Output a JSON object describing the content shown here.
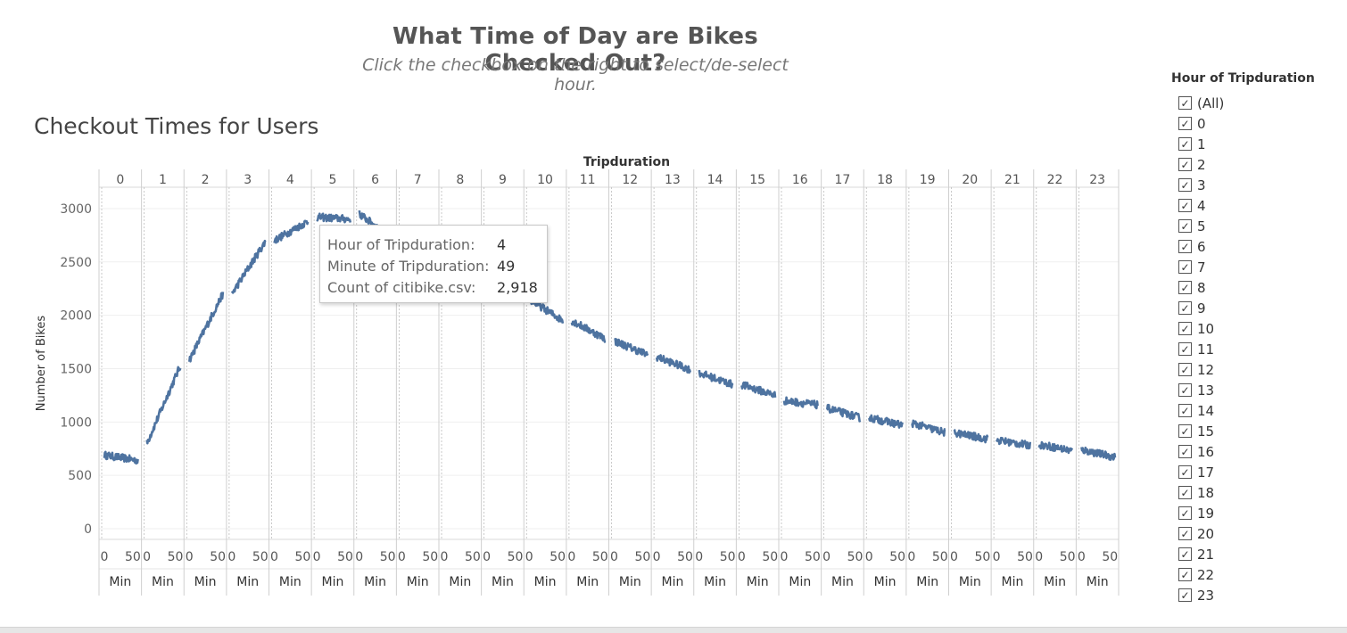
{
  "dashboard": {
    "title": "What Time of Day are Bikes Checked Out?",
    "subtitle": "Click the checkbox on the right to select/de-select hour."
  },
  "sheet": {
    "title": "Checkout Times for Users"
  },
  "chart_data": {
    "type": "line",
    "title": "Checkout Times for Users",
    "column_header_title": "Tripduration",
    "ylabel": "Number of Bikes",
    "ylim": [
      -100,
      3200
    ],
    "yticks": [
      0,
      500,
      1000,
      1500,
      2000,
      2500,
      3000
    ],
    "panel_xlabel": "Min",
    "panel_xticks": [
      0,
      50
    ],
    "panels": [
      "0",
      "1",
      "2",
      "3",
      "4",
      "5",
      "6",
      "7",
      "8",
      "9",
      "10",
      "11",
      "12",
      "13",
      "14",
      "15",
      "16",
      "17",
      "18",
      "19",
      "20",
      "21",
      "22",
      "23"
    ],
    "minute_range": [
      0,
      59
    ],
    "color": "#4e73a0",
    "series": [
      {
        "panel": "0",
        "start": 690,
        "end": 640
      },
      {
        "panel": "1",
        "start": 800,
        "end": 1530
      },
      {
        "panel": "2",
        "start": 1580,
        "end": 2200
      },
      {
        "panel": "3",
        "start": 2200,
        "end": 2690
      },
      {
        "panel": "4",
        "start": 2700,
        "end": 2880
      },
      {
        "panel": "5",
        "start": 2920,
        "end": 2900
      },
      {
        "panel": "6",
        "start": 2950,
        "end": 2720
      },
      {
        "panel": "7",
        "start": 2650,
        "end": 2500
      },
      {
        "panel": "8",
        "start": 2450,
        "end": 2300
      },
      {
        "panel": "9",
        "start": 2250,
        "end": 2150
      },
      {
        "panel": "10",
        "start": 2150,
        "end": 1950
      },
      {
        "panel": "11",
        "start": 1950,
        "end": 1780
      },
      {
        "panel": "12",
        "start": 1760,
        "end": 1630
      },
      {
        "panel": "13",
        "start": 1610,
        "end": 1490
      },
      {
        "panel": "14",
        "start": 1460,
        "end": 1350
      },
      {
        "panel": "15",
        "start": 1350,
        "end": 1250
      },
      {
        "panel": "16",
        "start": 1200,
        "end": 1160
      },
      {
        "panel": "17",
        "start": 1130,
        "end": 1040
      },
      {
        "panel": "18",
        "start": 1040,
        "end": 970
      },
      {
        "panel": "19",
        "start": 990,
        "end": 900
      },
      {
        "panel": "20",
        "start": 900,
        "end": 840
      },
      {
        "panel": "21",
        "start": 830,
        "end": 780
      },
      {
        "panel": "22",
        "start": 790,
        "end": 730
      },
      {
        "panel": "23",
        "start": 740,
        "end": 670
      }
    ],
    "tooltip": {
      "rows": [
        {
          "label": "Hour of Tripduration:",
          "value": "4"
        },
        {
          "label": "Minute of Tripduration:",
          "value": "49"
        },
        {
          "label": "Count of citibike.csv:",
          "value": "2,918"
        }
      ]
    }
  },
  "filter": {
    "title": "Hour of Tripduration",
    "check_glyph": "✓",
    "items": [
      "(All)",
      "0",
      "1",
      "2",
      "3",
      "4",
      "5",
      "6",
      "7",
      "8",
      "9",
      "10",
      "11",
      "12",
      "13",
      "14",
      "15",
      "16",
      "17",
      "18",
      "19",
      "20",
      "21",
      "22",
      "23"
    ]
  }
}
